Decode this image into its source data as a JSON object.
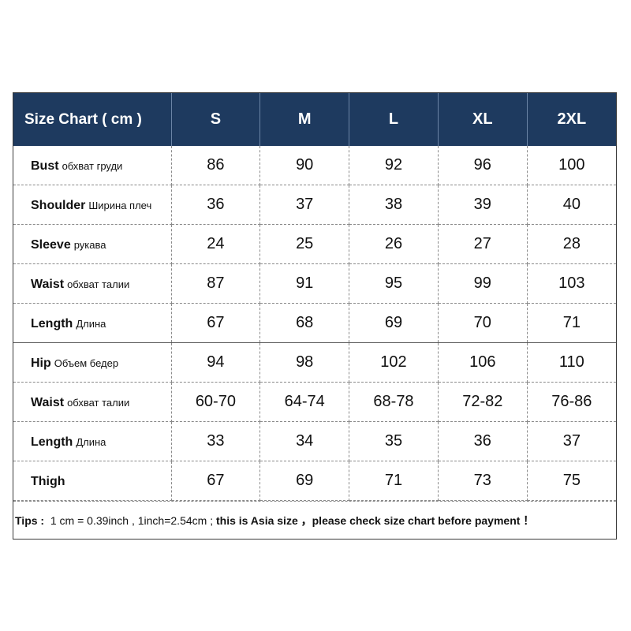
{
  "header": {
    "title": "Size Chart ( cm )",
    "sizes": [
      "S",
      "M",
      "L",
      "XL",
      "2XL"
    ]
  },
  "rows": [
    {
      "en": "Bust",
      "ru": "обхват груди",
      "values": [
        "86",
        "90",
        "92",
        "96",
        "100"
      ]
    },
    {
      "en": "Shoulder",
      "ru": "Ширина плеч",
      "values": [
        "36",
        "37",
        "38",
        "39",
        "40"
      ]
    },
    {
      "en": "Sleeve",
      "ru": "рукава",
      "values": [
        "24",
        "25",
        "26",
        "27",
        "28"
      ]
    },
    {
      "en": "Waist",
      "ru": "обхват талии",
      "values": [
        "87",
        "91",
        "95",
        "99",
        "103"
      ]
    },
    {
      "en": "Length",
      "ru": "Длина",
      "values": [
        "67",
        "68",
        "69",
        "70",
        "71"
      ]
    },
    {
      "en": "Hip",
      "ru": "Объем бедер",
      "values": [
        "94",
        "98",
        "102",
        "106",
        "110"
      ]
    },
    {
      "en": "Waist",
      "ru": "обхват талии",
      "values": [
        "60-70",
        "64-74",
        "68-78",
        "72-82",
        "76-86"
      ]
    },
    {
      "en": "Length",
      "ru": "Длина",
      "values": [
        "33",
        "34",
        "35",
        "36",
        "37"
      ]
    },
    {
      "en": "Thigh",
      "ru": "",
      "values": [
        "67",
        "69",
        "71",
        "73",
        "75"
      ]
    }
  ],
  "tips": {
    "label": "Tips :",
    "conversion": "1 cm = 0.39inch , 1inch=2.54cm ;",
    "notice": "this is Asia size ，please check size chart before payment ！"
  },
  "colors": {
    "header_bg": "#1e3a5f",
    "header_text": "#ffffff"
  }
}
